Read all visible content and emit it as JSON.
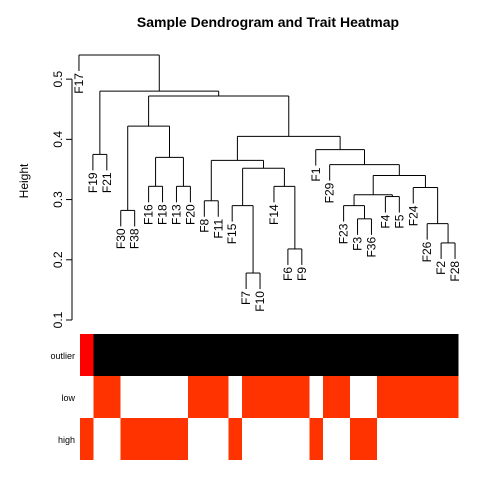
{
  "chart_data": [
    {
      "type": "dendrogram",
      "title": "Sample Dendrogram and Trait Heatmap",
      "ylabel": "Height",
      "ylim": [
        0.1,
        0.56
      ],
      "yticks": [
        0.1,
        0.2,
        0.3,
        0.4,
        0.5
      ],
      "ytick_labels": [
        "0.1",
        "0.2",
        "0.3",
        "0.4",
        "0.5"
      ],
      "leaf_order": [
        "F17",
        "F19",
        "F21",
        "F30",
        "F38",
        "F16",
        "F18",
        "F13",
        "F20",
        "F8",
        "F11",
        "F15",
        "F7",
        "F10",
        "F14",
        "F6",
        "F9",
        "F1",
        "F29",
        "F23",
        "F3",
        "F36",
        "F4",
        "F5",
        "F24",
        "F26",
        "F2",
        "F28"
      ],
      "merges": [
        {
          "height": 0.54,
          "left": "F17",
          "right": "m_rest"
        },
        {
          "height": 0.48,
          "left": "m_b",
          "right": "m_main"
        },
        {
          "height": 0.375,
          "left": "F19",
          "right": "F21"
        },
        {
          "height": 0.472,
          "left": "m_a",
          "right": "m_c"
        },
        {
          "height": 0.422,
          "left": "m_d",
          "right": "m_e"
        },
        {
          "height": 0.282,
          "left": "F30",
          "right": "F38"
        },
        {
          "height": 0.37,
          "left": "m_f",
          "right": "m_g"
        },
        {
          "height": 0.322,
          "left": "F16",
          "right": "F18"
        },
        {
          "height": 0.322,
          "left": "F13",
          "right": "F20"
        },
        {
          "height": 0.405,
          "left": "m_h",
          "right": "m_i"
        },
        {
          "height": 0.365,
          "left": "m_j",
          "right": "m_k"
        },
        {
          "height": 0.298,
          "left": "F8",
          "right": "F11"
        },
        {
          "height": 0.352,
          "left": "m_l",
          "right": "m_m"
        },
        {
          "height": 0.29,
          "left": "F15",
          "right": "m_n"
        },
        {
          "height": 0.178,
          "left": "F7",
          "right": "F10"
        },
        {
          "height": 0.322,
          "left": "F14",
          "right": "m_o"
        },
        {
          "height": 0.218,
          "left": "F6",
          "right": "F9"
        },
        {
          "height": 0.383,
          "left": "F1",
          "right": "m_p"
        },
        {
          "height": 0.358,
          "left": "F29",
          "right": "m_q"
        },
        {
          "height": 0.34,
          "left": "m_r",
          "right": "m_s"
        },
        {
          "height": 0.308,
          "left": "m_t",
          "right": "m_u"
        },
        {
          "height": 0.29,
          "left": "F23",
          "right": "m_v"
        },
        {
          "height": 0.268,
          "left": "F3",
          "right": "F36"
        },
        {
          "height": 0.305,
          "left": "F4",
          "right": "F5"
        },
        {
          "height": 0.32,
          "left": "F24",
          "right": "m_w"
        },
        {
          "height": 0.26,
          "left": "F26",
          "right": "m_x"
        },
        {
          "height": 0.228,
          "left": "F2",
          "right": "F28"
        }
      ]
    },
    {
      "type": "heatmap",
      "rows": [
        "outlier",
        "low",
        "high"
      ],
      "colors": {
        "red": "#FF0000",
        "black": "#000000",
        "orange": "#FF3300",
        "white": "#FFFFFF"
      },
      "cells": {
        "outlier": [
          "red",
          "black",
          "black",
          "black",
          "black",
          "black",
          "black",
          "black",
          "black",
          "black",
          "black",
          "black",
          "black",
          "black",
          "black",
          "black",
          "black",
          "black",
          "black",
          "black",
          "black",
          "black",
          "black",
          "black",
          "black",
          "black",
          "black",
          "black"
        ],
        "low": [
          "white",
          "orange",
          "orange",
          "white",
          "white",
          "white",
          "white",
          "white",
          "orange",
          "orange",
          "orange",
          "white",
          "orange",
          "orange",
          "orange",
          "orange",
          "orange",
          "white",
          "orange",
          "orange",
          "white",
          "white",
          "orange",
          "orange",
          "orange",
          "orange",
          "orange",
          "orange"
        ],
        "high": [
          "orange",
          "white",
          "white",
          "orange",
          "orange",
          "orange",
          "orange",
          "orange",
          "white",
          "white",
          "white",
          "orange",
          "white",
          "white",
          "white",
          "white",
          "white",
          "orange",
          "white",
          "white",
          "orange",
          "orange",
          "white",
          "white",
          "white",
          "white",
          "white",
          "white"
        ]
      }
    }
  ]
}
